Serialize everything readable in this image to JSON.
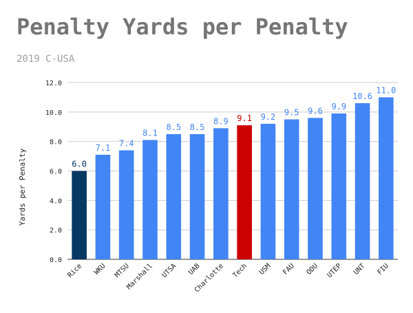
{
  "chart_data": {
    "type": "bar",
    "title": "Penalty Yards per Penalty",
    "subtitle": "2019 C-USA",
    "xlabel": "",
    "ylabel": "Yards per Penalty",
    "ylim": [
      0,
      12
    ],
    "yticks": [
      0,
      2,
      4,
      6,
      8,
      10,
      12
    ],
    "grid": true,
    "categories": [
      "Rice",
      "WKU",
      "MTSU",
      "Marshall",
      "UTSA",
      "UAB",
      "Charlotte",
      "Tech",
      "USM",
      "FAU",
      "ODU",
      "UTEP",
      "UNT",
      "FIU"
    ],
    "values": [
      6.0,
      7.1,
      7.4,
      8.1,
      8.5,
      8.5,
      8.9,
      9.1,
      9.2,
      9.5,
      9.6,
      9.9,
      10.6,
      11.0
    ],
    "bar_colors": [
      "#073763",
      "#4285f4",
      "#4285f4",
      "#4285f4",
      "#4285f4",
      "#4285f4",
      "#4285f4",
      "#cc0000",
      "#4285f4",
      "#4285f4",
      "#4285f4",
      "#4285f4",
      "#4285f4",
      "#4285f4"
    ],
    "label_colors": [
      "#073763",
      "#4285f4",
      "#4285f4",
      "#4285f4",
      "#4285f4",
      "#4285f4",
      "#4285f4",
      "#cc0000",
      "#4285f4",
      "#4285f4",
      "#4285f4",
      "#4285f4",
      "#4285f4",
      "#4285f4"
    ]
  }
}
